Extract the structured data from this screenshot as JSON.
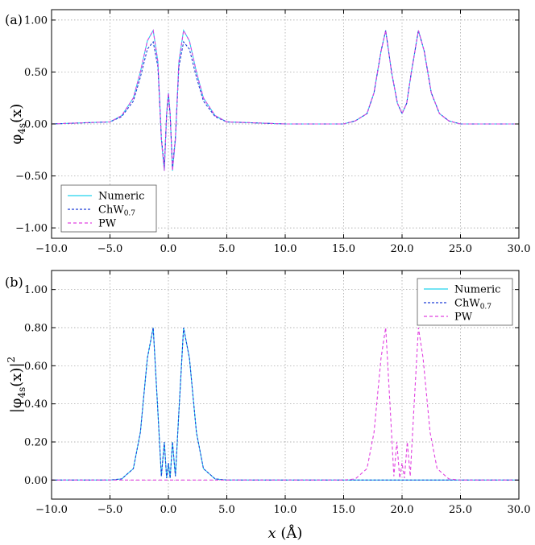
{
  "chart_data": [
    {
      "type": "line",
      "panel_label": "(a)",
      "ylabel": {
        "base": "φ",
        "sub": "4s",
        "tail": "(x)"
      },
      "xlim": [
        -10,
        30
      ],
      "ylim": [
        -1.1,
        1.1
      ],
      "xticks": [
        "−10.0",
        "−5.0",
        "0.0",
        "5.0",
        "10.0",
        "15.0",
        "20.0",
        "25.0",
        "30.0"
      ],
      "xtick_values": [
        -10,
        -5,
        0,
        5,
        10,
        15,
        20,
        25,
        30
      ],
      "yticks": [
        "−1.00",
        "−0.50",
        "0.00",
        "0.50",
        "1.00"
      ],
      "ytick_values": [
        -1,
        -0.5,
        0,
        0.5,
        1
      ],
      "grid": true,
      "legend_position": "bottom-left",
      "series": [
        {
          "name": "Numeric",
          "name_sub": "",
          "color": "#22d3ee",
          "dash": "solid",
          "x": [
            -10,
            -5,
            -4,
            -3,
            -2.4,
            -1.8,
            -1.3,
            -0.9,
            -0.6,
            -0.35,
            -0.15,
            0.0,
            0.15,
            0.35,
            0.6,
            0.9,
            1.3,
            1.8,
            2.4,
            3,
            4,
            5,
            10,
            15,
            16,
            17,
            17.6,
            18.2,
            18.6,
            19.1,
            19.6,
            20.0,
            20.4,
            20.8,
            21.4,
            21.9,
            22.5,
            23.2,
            24,
            25,
            30
          ],
          "y": [
            0,
            0.02,
            0.08,
            0.25,
            0.5,
            0.8,
            0.9,
            0.6,
            -0.15,
            -0.45,
            0.1,
            0.3,
            0.1,
            -0.45,
            -0.15,
            0.6,
            0.9,
            0.8,
            0.5,
            0.25,
            0.08,
            0.02,
            0,
            0,
            0.03,
            0.1,
            0.3,
            0.7,
            0.9,
            0.5,
            0.2,
            0.1,
            0.2,
            0.5,
            0.9,
            0.7,
            0.3,
            0.1,
            0.03,
            0,
            0
          ]
        },
        {
          "name": "ChW",
          "name_sub": "0.7",
          "color": "#1f3fd6",
          "dash": "3,2",
          "x": [
            -10,
            -5,
            -4,
            -3,
            -2.4,
            -1.8,
            -1.3,
            -0.9,
            -0.6,
            -0.35,
            -0.15,
            0.0,
            0.15,
            0.35,
            0.6,
            0.9,
            1.3,
            1.8,
            2.4,
            3,
            4,
            5,
            10,
            15,
            16,
            17,
            17.6,
            18.2,
            18.6,
            19.1,
            19.6,
            20.0,
            20.4,
            20.8,
            21.4,
            21.9,
            22.5,
            23.2,
            24,
            25,
            30
          ],
          "y": [
            0,
            0.02,
            0.07,
            0.22,
            0.45,
            0.72,
            0.79,
            0.55,
            -0.13,
            -0.42,
            0.09,
            0.28,
            0.09,
            -0.42,
            -0.13,
            0.55,
            0.79,
            0.72,
            0.45,
            0.22,
            0.07,
            0.02,
            0,
            0,
            0.03,
            0.1,
            0.3,
            0.7,
            0.9,
            0.5,
            0.2,
            0.1,
            0.2,
            0.5,
            0.9,
            0.7,
            0.3,
            0.1,
            0.03,
            0,
            0
          ]
        },
        {
          "name": "PW",
          "name_sub": "",
          "color": "#e040e0",
          "dash": "4,3",
          "x": [
            -10,
            -5,
            -4,
            -3,
            -2.4,
            -1.8,
            -1.3,
            -0.9,
            -0.6,
            -0.35,
            -0.15,
            0.0,
            0.15,
            0.35,
            0.6,
            0.9,
            1.3,
            1.8,
            2.4,
            3,
            4,
            5,
            10,
            15,
            16,
            17,
            17.6,
            18.2,
            18.6,
            19.1,
            19.6,
            20.0,
            20.4,
            20.8,
            21.4,
            21.9,
            22.5,
            23.2,
            24,
            25,
            30
          ],
          "y": [
            0,
            0.02,
            0.08,
            0.25,
            0.5,
            0.8,
            0.9,
            0.6,
            -0.15,
            -0.45,
            0.1,
            0.3,
            0.1,
            -0.45,
            -0.15,
            0.6,
            0.9,
            0.8,
            0.5,
            0.25,
            0.08,
            0.02,
            0,
            0,
            0.03,
            0.1,
            0.3,
            0.7,
            0.9,
            0.5,
            0.2,
            0.1,
            0.2,
            0.5,
            0.9,
            0.7,
            0.3,
            0.1,
            0.03,
            0,
            0
          ]
        }
      ]
    },
    {
      "type": "line",
      "panel_label": "(b)",
      "ylabel": {
        "base": "|φ",
        "sub": "4s",
        "tail": "(x)|",
        "sup": "2"
      },
      "xlabel": {
        "base": "x",
        "tail": " (Å)"
      },
      "xlim": [
        -10,
        30
      ],
      "ylim": [
        -0.1,
        1.1
      ],
      "xticks": [
        "−10.0",
        "−5.0",
        "0.0",
        "5.0",
        "10.0",
        "15.0",
        "20.0",
        "25.0",
        "30.0"
      ],
      "xtick_values": [
        -10,
        -5,
        0,
        5,
        10,
        15,
        20,
        25,
        30
      ],
      "yticks": [
        "0.00",
        "0.20",
        "0.40",
        "0.60",
        "0.80",
        "1.00"
      ],
      "ytick_values": [
        0,
        0.2,
        0.4,
        0.6,
        0.8,
        1.0
      ],
      "grid": true,
      "legend_position": "top-right",
      "series": [
        {
          "name": "Numeric",
          "name_sub": "",
          "color": "#22d3ee",
          "dash": "solid",
          "x": [
            -10,
            -5,
            -4,
            -3,
            -2.4,
            -1.8,
            -1.3,
            -0.9,
            -0.6,
            -0.35,
            -0.15,
            0.0,
            0.15,
            0.35,
            0.6,
            0.9,
            1.3,
            1.8,
            2.4,
            3,
            4,
            5,
            10,
            30
          ],
          "y": [
            0,
            0.0004,
            0.006,
            0.06,
            0.25,
            0.64,
            0.8,
            0.36,
            0.02,
            0.2,
            0.01,
            0.09,
            0.01,
            0.2,
            0.02,
            0.36,
            0.8,
            0.64,
            0.25,
            0.06,
            0.006,
            0.0004,
            0,
            0
          ]
        },
        {
          "name": "ChW",
          "name_sub": "0.7",
          "color": "#1f3fd6",
          "dash": "3,2",
          "x": [
            -10,
            -5,
            -4,
            -3,
            -2.4,
            -1.8,
            -1.3,
            -0.9,
            -0.6,
            -0.35,
            -0.15,
            0.0,
            0.15,
            0.35,
            0.6,
            0.9,
            1.3,
            1.8,
            2.4,
            3,
            4,
            5,
            10,
            30
          ],
          "y": [
            0,
            0.0004,
            0.006,
            0.06,
            0.25,
            0.64,
            0.8,
            0.36,
            0.02,
            0.2,
            0.01,
            0.09,
            0.01,
            0.2,
            0.02,
            0.36,
            0.8,
            0.64,
            0.25,
            0.06,
            0.006,
            0.0004,
            0,
            0
          ]
        },
        {
          "name": "PW",
          "name_sub": "",
          "color": "#e040e0",
          "dash": "4,3",
          "x": [
            -10,
            15,
            16,
            17,
            17.6,
            18.2,
            18.6,
            19.0,
            19.3,
            19.55,
            19.8,
            20.0,
            20.2,
            20.45,
            20.7,
            21.0,
            21.4,
            21.8,
            22.4,
            23,
            24,
            25,
            30
          ],
          "y": [
            0,
            0,
            0.006,
            0.06,
            0.25,
            0.64,
            0.8,
            0.36,
            0.02,
            0.2,
            0.01,
            0.09,
            0.01,
            0.2,
            0.02,
            0.36,
            0.8,
            0.64,
            0.25,
            0.06,
            0.006,
            0,
            0
          ]
        }
      ]
    }
  ]
}
